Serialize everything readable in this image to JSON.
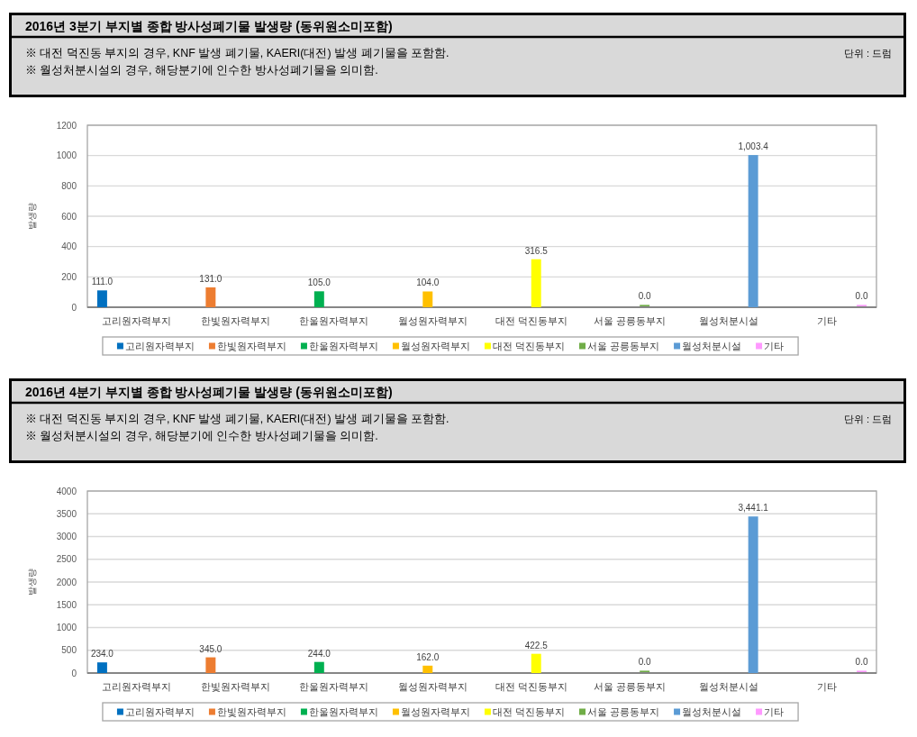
{
  "chart_data": [
    {
      "type": "bar",
      "title": "2016년 3분기 부지별 종합 방사성폐기물 발생량 (동위원소미포함)",
      "annotations": [
        "※ 대전 덕진동 부지의 경우, KNF 발생 폐기물, KAERI(대전) 발생 폐기물을 포함함.",
        "※ 월성처분시설의 경우, 해당분기에 인수한 방사성폐기물을 의미함.",
        "단위 : 드럼"
      ],
      "ylabel": "발생량",
      "categories": [
        "고리원자력부지",
        "한빛원자력부지",
        "한울원자력부지",
        "월성원자력부지",
        "대전 덕진동부지",
        "서울 공릉동부지",
        "월성처분시설",
        "기타"
      ],
      "series": [
        {
          "name": "고리원자력부지",
          "color": "#0070c0",
          "values": [
            111.0,
            null,
            null,
            null,
            null,
            null,
            null,
            null
          ],
          "value_labels": [
            "111.0",
            null,
            null,
            null,
            null,
            null,
            null,
            null
          ]
        },
        {
          "name": "한빛원자력부지",
          "color": "#ed7d31",
          "values": [
            null,
            131.0,
            null,
            null,
            null,
            null,
            null,
            null
          ],
          "value_labels": [
            null,
            "131.0",
            null,
            null,
            null,
            null,
            null,
            null
          ]
        },
        {
          "name": "한울원자력부지",
          "color": "#00b050",
          "values": [
            null,
            null,
            105.0,
            null,
            null,
            null,
            null,
            null
          ],
          "value_labels": [
            null,
            null,
            "105.0",
            null,
            null,
            null,
            null,
            null
          ]
        },
        {
          "name": "월성원자력부지",
          "color": "#ffc000",
          "values": [
            null,
            null,
            null,
            104.0,
            null,
            null,
            null,
            null
          ],
          "value_labels": [
            null,
            null,
            null,
            "104.0",
            null,
            null,
            null,
            null
          ]
        },
        {
          "name": "대전 덕진동부지",
          "color": "#ffff00",
          "values": [
            null,
            null,
            null,
            null,
            316.5,
            null,
            null,
            null
          ],
          "value_labels": [
            null,
            null,
            null,
            null,
            "316.5",
            null,
            null,
            null
          ]
        },
        {
          "name": "서울 공릉동부지",
          "color": "#70ad47",
          "values": [
            null,
            null,
            null,
            null,
            null,
            0.0,
            null,
            null
          ],
          "value_labels": [
            null,
            null,
            null,
            null,
            null,
            "0.0",
            null,
            null
          ]
        },
        {
          "name": "월성처분시설",
          "color": "#5b9bd5",
          "values": [
            null,
            null,
            null,
            null,
            null,
            null,
            1003.4,
            null
          ],
          "value_labels": [
            null,
            null,
            null,
            null,
            null,
            null,
            "1,003.4",
            null
          ]
        },
        {
          "name": "기타",
          "color": "#ff99ff",
          "values": [
            null,
            null,
            null,
            null,
            null,
            null,
            null,
            0.0
          ],
          "value_labels": [
            null,
            null,
            null,
            null,
            null,
            null,
            null,
            "0.0"
          ]
        }
      ],
      "ylim": [
        0,
        1200
      ],
      "yticks": [
        0,
        200,
        400,
        600,
        800,
        1000,
        1200
      ],
      "grid": "y",
      "legend": "bottom"
    },
    {
      "type": "bar",
      "title": "2016년 4분기 부지별 종합 방사성폐기물 발생량 (동위원소미포함)",
      "annotations": [
        "※ 대전 덕진동 부지의 경우, KNF 발생 폐기물, KAERI(대전) 발생 폐기물을 포함함.",
        "※ 월성처분시설의 경우, 해당분기에 인수한 방사성폐기물을 의미함.",
        "단위 : 드럼"
      ],
      "ylabel": "발생량",
      "categories": [
        "고리원자력부지",
        "한빛원자력부지",
        "한울원자력부지",
        "월성원자력부지",
        "대전 덕진동부지",
        "서울 공릉동부지",
        "월성처분시설",
        "기타"
      ],
      "series": [
        {
          "name": "고리원자력부지",
          "color": "#0070c0",
          "values": [
            234.0,
            null,
            null,
            null,
            null,
            null,
            null,
            null
          ],
          "value_labels": [
            "234.0",
            null,
            null,
            null,
            null,
            null,
            null,
            null
          ]
        },
        {
          "name": "한빛원자력부지",
          "color": "#ed7d31",
          "values": [
            null,
            345.0,
            null,
            null,
            null,
            null,
            null,
            null
          ],
          "value_labels": [
            null,
            "345.0",
            null,
            null,
            null,
            null,
            null,
            null
          ]
        },
        {
          "name": "한울원자력부지",
          "color": "#00b050",
          "values": [
            null,
            null,
            244.0,
            null,
            null,
            null,
            null,
            null
          ],
          "value_labels": [
            null,
            null,
            "244.0",
            null,
            null,
            null,
            null,
            null
          ]
        },
        {
          "name": "월성원자력부지",
          "color": "#ffc000",
          "values": [
            null,
            null,
            null,
            162.0,
            null,
            null,
            null,
            null
          ],
          "value_labels": [
            null,
            null,
            null,
            "162.0",
            null,
            null,
            null,
            null
          ]
        },
        {
          "name": "대전 덕진동부지",
          "color": "#ffff00",
          "values": [
            null,
            null,
            null,
            null,
            422.5,
            null,
            null,
            null
          ],
          "value_labels": [
            null,
            null,
            null,
            null,
            "422.5",
            null,
            null,
            null
          ]
        },
        {
          "name": "서울 공릉동부지",
          "color": "#70ad47",
          "values": [
            null,
            null,
            null,
            null,
            null,
            0.0,
            null,
            null
          ],
          "value_labels": [
            null,
            null,
            null,
            null,
            null,
            "0.0",
            null,
            null
          ]
        },
        {
          "name": "월성처분시설",
          "color": "#5b9bd5",
          "values": [
            null,
            null,
            null,
            null,
            null,
            null,
            3441.1,
            null
          ],
          "value_labels": [
            null,
            null,
            null,
            null,
            null,
            null,
            "3,441.1",
            null
          ]
        },
        {
          "name": "기타",
          "color": "#ff99ff",
          "values": [
            null,
            null,
            null,
            null,
            null,
            null,
            null,
            0.0
          ],
          "value_labels": [
            null,
            null,
            null,
            null,
            null,
            null,
            null,
            "0.0"
          ]
        }
      ],
      "ylim": [
        0,
        4000
      ],
      "yticks": [
        0,
        500,
        1000,
        1500,
        2000,
        2500,
        3000,
        3500,
        4000
      ],
      "grid": "y",
      "legend": "bottom"
    }
  ]
}
